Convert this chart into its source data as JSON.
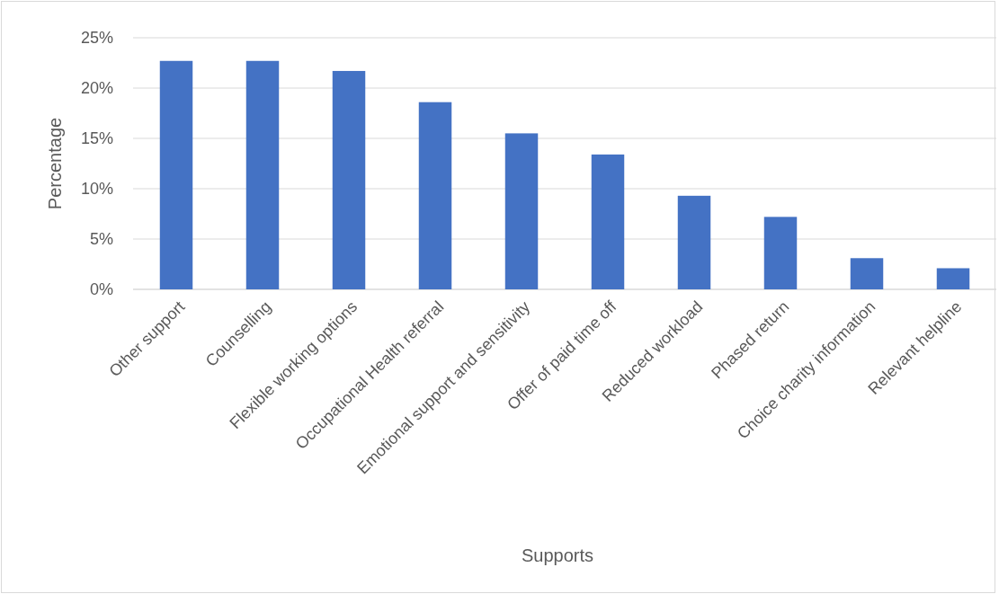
{
  "chart_data": {
    "type": "bar",
    "xlabel": "Supports",
    "ylabel": "Percentage",
    "categories": [
      "Other support",
      "Counselling",
      "Flexible working options",
      "Occupational Health referral",
      "Emotional support and sensitivity",
      "Offer of paid time off",
      "Reduced workload",
      "Phased return",
      "Choice charity information",
      "Relevant helpline"
    ],
    "values": [
      22.7,
      22.7,
      21.7,
      18.6,
      15.5,
      13.4,
      9.3,
      7.2,
      3.1,
      2.1
    ],
    "color": "#4472c4",
    "ylim": [
      0,
      25
    ],
    "yticks": [
      {
        "value": 0,
        "label": "0%"
      },
      {
        "value": 5,
        "label": "5%"
      },
      {
        "value": 10,
        "label": "10%"
      },
      {
        "value": 15,
        "label": "15%"
      },
      {
        "value": 20,
        "label": "20%"
      },
      {
        "value": 25,
        "label": "25%"
      }
    ],
    "grid": "y"
  }
}
